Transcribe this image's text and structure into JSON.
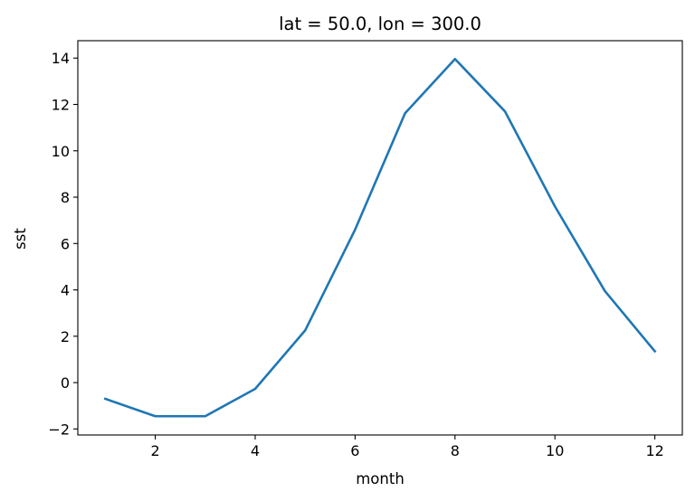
{
  "chart_data": {
    "type": "line",
    "title": "lat = 50.0, lon = 300.0",
    "xlabel": "month",
    "ylabel": "sst",
    "x": [
      1,
      2,
      3,
      4,
      5,
      6,
      7,
      8,
      9,
      10,
      11,
      12
    ],
    "series": [
      {
        "values": [
          -0.7,
          -1.45,
          -1.45,
          -0.27,
          2.25,
          6.6,
          11.62,
          13.96,
          11.7,
          7.6,
          3.95,
          1.35
        ]
      }
    ],
    "xlim": [
      0.45,
      12.55
    ],
    "ylim": [
      -2.26,
      14.75
    ],
    "xticks": [
      2,
      4,
      6,
      8,
      10,
      12
    ],
    "yticks": [
      -2,
      0,
      2,
      4,
      6,
      8,
      10,
      12,
      14
    ],
    "xtick_labels": [
      "2",
      "4",
      "6",
      "8",
      "10",
      "12"
    ],
    "ytick_labels": [
      "−2",
      "0",
      "2",
      "4",
      "6",
      "8",
      "10",
      "12",
      "14"
    ],
    "grid": false,
    "line_color": "#1f77b4"
  }
}
